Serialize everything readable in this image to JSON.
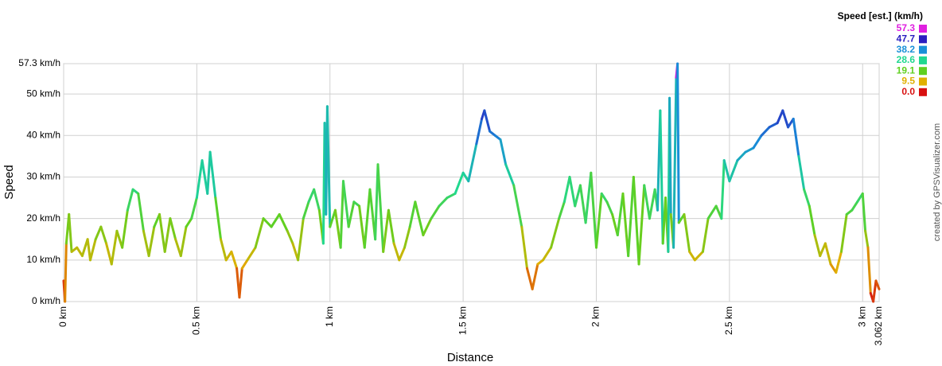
{
  "chart_data": {
    "type": "line",
    "x_label": "Distance",
    "y_label": "Speed",
    "credit": "created by GPSVisualizer.com",
    "xlim": [
      0,
      3.062
    ],
    "ylim": [
      0,
      57.3
    ],
    "xticks": [
      {
        "value": 0,
        "label": "0 km"
      },
      {
        "value": 0.5,
        "label": "0.5 km"
      },
      {
        "value": 1,
        "label": "1 km"
      },
      {
        "value": 1.5,
        "label": "1.5 km"
      },
      {
        "value": 2,
        "label": "2 km"
      },
      {
        "value": 2.5,
        "label": "2.5 km"
      },
      {
        "value": 3,
        "label": "3 km"
      },
      {
        "value": 3.062,
        "label": "3.062 km"
      }
    ],
    "yticks": [
      {
        "value": 0,
        "label": "0 km/h"
      },
      {
        "value": 10,
        "label": "10 km/h"
      },
      {
        "value": 20,
        "label": "20 km/h"
      },
      {
        "value": 30,
        "label": "30 km/h"
      },
      {
        "value": 40,
        "label": "40 km/h"
      },
      {
        "value": 50,
        "label": "50 km/h"
      },
      {
        "value": 57.3,
        "label": "57.3 km/h"
      }
    ],
    "grid": true,
    "color_scale": {
      "title": "Speed [est.] (km/h)",
      "stops": [
        {
          "value": 57.3,
          "label": "57.3",
          "color": "#e020e0"
        },
        {
          "value": 47.7,
          "label": "47.7",
          "color": "#2a1ec0"
        },
        {
          "value": 38.2,
          "label": "38.2",
          "color": "#1890d8"
        },
        {
          "value": 28.6,
          "label": "28.6",
          "color": "#20d890"
        },
        {
          "value": 19.1,
          "label": "19.1",
          "color": "#60d020"
        },
        {
          "value": 9.5,
          "label": "9.5",
          "color": "#e0b000"
        },
        {
          "value": 0,
          "label": "0.0",
          "color": "#d81010"
        }
      ]
    },
    "x": [
      0,
      0.005,
      0.01,
      0.02,
      0.03,
      0.05,
      0.07,
      0.09,
      0.1,
      0.12,
      0.14,
      0.16,
      0.18,
      0.2,
      0.22,
      0.24,
      0.26,
      0.28,
      0.3,
      0.32,
      0.34,
      0.36,
      0.38,
      0.4,
      0.42,
      0.44,
      0.46,
      0.48,
      0.5,
      0.52,
      0.54,
      0.55,
      0.57,
      0.59,
      0.61,
      0.63,
      0.65,
      0.66,
      0.67,
      0.69,
      0.72,
      0.75,
      0.78,
      0.81,
      0.84,
      0.86,
      0.88,
      0.9,
      0.92,
      0.94,
      0.96,
      0.975,
      0.98,
      0.985,
      0.99,
      1.0,
      1.02,
      1.04,
      1.05,
      1.07,
      1.09,
      1.11,
      1.13,
      1.15,
      1.17,
      1.18,
      1.2,
      1.22,
      1.24,
      1.26,
      1.28,
      1.3,
      1.32,
      1.35,
      1.38,
      1.41,
      1.44,
      1.47,
      1.5,
      1.52,
      1.55,
      1.57,
      1.58,
      1.6,
      1.62,
      1.64,
      1.66,
      1.69,
      1.72,
      1.74,
      1.76,
      1.78,
      1.8,
      1.83,
      1.86,
      1.88,
      1.9,
      1.92,
      1.94,
      1.96,
      1.98,
      2.0,
      2.02,
      2.04,
      2.06,
      2.08,
      2.1,
      2.12,
      2.14,
      2.16,
      2.18,
      2.2,
      2.22,
      2.23,
      2.24,
      2.25,
      2.26,
      2.27,
      2.275,
      2.28,
      2.29,
      2.3,
      2.305,
      2.31,
      2.33,
      2.35,
      2.37,
      2.4,
      2.42,
      2.45,
      2.47,
      2.48,
      2.5,
      2.53,
      2.56,
      2.59,
      2.62,
      2.65,
      2.68,
      2.7,
      2.72,
      2.74,
      2.76,
      2.78,
      2.8,
      2.82,
      2.84,
      2.86,
      2.88,
      2.9,
      2.92,
      2.94,
      2.96,
      2.98,
      3.0,
      3.01,
      3.02,
      3.03,
      3.04,
      3.05,
      3.062
    ],
    "values": [
      5,
      0,
      14,
      21,
      12,
      13,
      11,
      15,
      10,
      15,
      18,
      14,
      9,
      17,
      13,
      22,
      27,
      26,
      17,
      11,
      18,
      21,
      12,
      20,
      15,
      11,
      18,
      20,
      25,
      34,
      26,
      36,
      25,
      15,
      10,
      12,
      8,
      1,
      8,
      10,
      13,
      20,
      18,
      21,
      17,
      14,
      10,
      20,
      24,
      27,
      22,
      14,
      43,
      21,
      47,
      18,
      22,
      13,
      29,
      18,
      24,
      23,
      13,
      27,
      15,
      33,
      12,
      22,
      14,
      10,
      13,
      18,
      24,
      16,
      20,
      23,
      25,
      26,
      31,
      29,
      38,
      44,
      46,
      41,
      40,
      39,
      33,
      28,
      18,
      8,
      3,
      9,
      10,
      13,
      20,
      24,
      30,
      23,
      28,
      19,
      31,
      13,
      26,
      24,
      21,
      16,
      26,
      11,
      30,
      9,
      28,
      20,
      27,
      22,
      46,
      14,
      25,
      12,
      49,
      21,
      13,
      54,
      57.3,
      19,
      21,
      12,
      10,
      12,
      20,
      23,
      20,
      34,
      29,
      34,
      36,
      37,
      40,
      42,
      43,
      46,
      42,
      44,
      35,
      27,
      23,
      16,
      11,
      14,
      9,
      7,
      12,
      21,
      22,
      24,
      26,
      17,
      13,
      2,
      0,
      5,
      3
    ]
  }
}
